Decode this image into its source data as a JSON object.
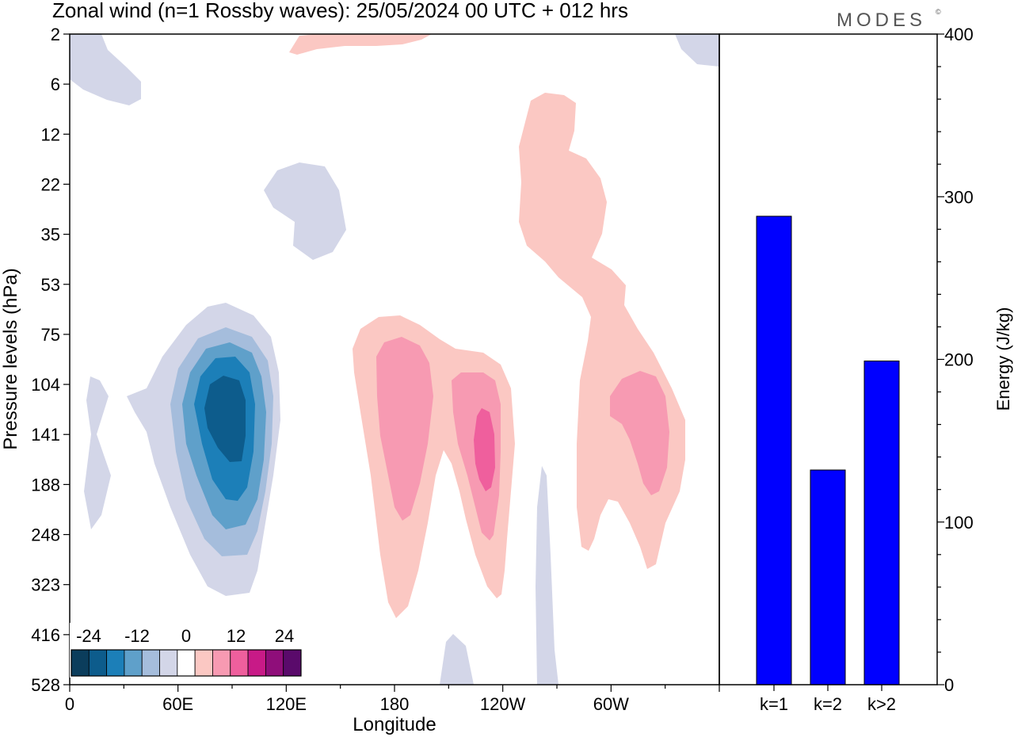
{
  "title": "Zonal wind (n=1 Rossby waves):  25/05/2024  00 UTC  + 012 hrs",
  "logo_text": "MODES",
  "logo_mark": "©",
  "chart_data": [
    {
      "type": "heatmap",
      "xlabel": "Longitude",
      "ylabel": "Pressure levels (hPa)",
      "x_ticks": [
        "0",
        "60E",
        "120E",
        "180",
        "120W",
        "60W"
      ],
      "y_ticks": [
        "2",
        "6",
        "12",
        "22",
        "35",
        "53",
        "75",
        "104",
        "141",
        "188",
        "248",
        "323",
        "416",
        "528"
      ],
      "colorbar": {
        "labels": [
          "-24",
          "-12",
          "0",
          "12",
          "24"
        ],
        "colors": [
          "#0b3d5c",
          "#0d5c8c",
          "#1c7fb8",
          "#5fa0ca",
          "#a5bddc",
          "#d3d6e8",
          "#ffffff",
          "#fbc8c3",
          "#f79ab2",
          "#ef5f9d",
          "#c81a87",
          "#8f0e7a",
          "#5a0a6b"
        ]
      },
      "features": [
        {
          "sign": "negative",
          "min_level": "-24",
          "region": "60E-120E, 75-323 hPa"
        },
        {
          "sign": "positive",
          "max_level": "18",
          "region": "180-120W, 75-416 hPa"
        },
        {
          "sign": "positive",
          "max_level": "12",
          "region": "120W-60W, 12-323 hPa"
        }
      ]
    },
    {
      "type": "bar",
      "ylabel": "Energy (J/kg)",
      "categories": [
        "k=1",
        "k=2",
        "k>2"
      ],
      "values": [
        288,
        132,
        199
      ],
      "ylim": [
        0,
        400
      ],
      "y_ticks": [
        "0",
        "100",
        "200",
        "300",
        "400"
      ],
      "color": "#0000ff"
    }
  ]
}
